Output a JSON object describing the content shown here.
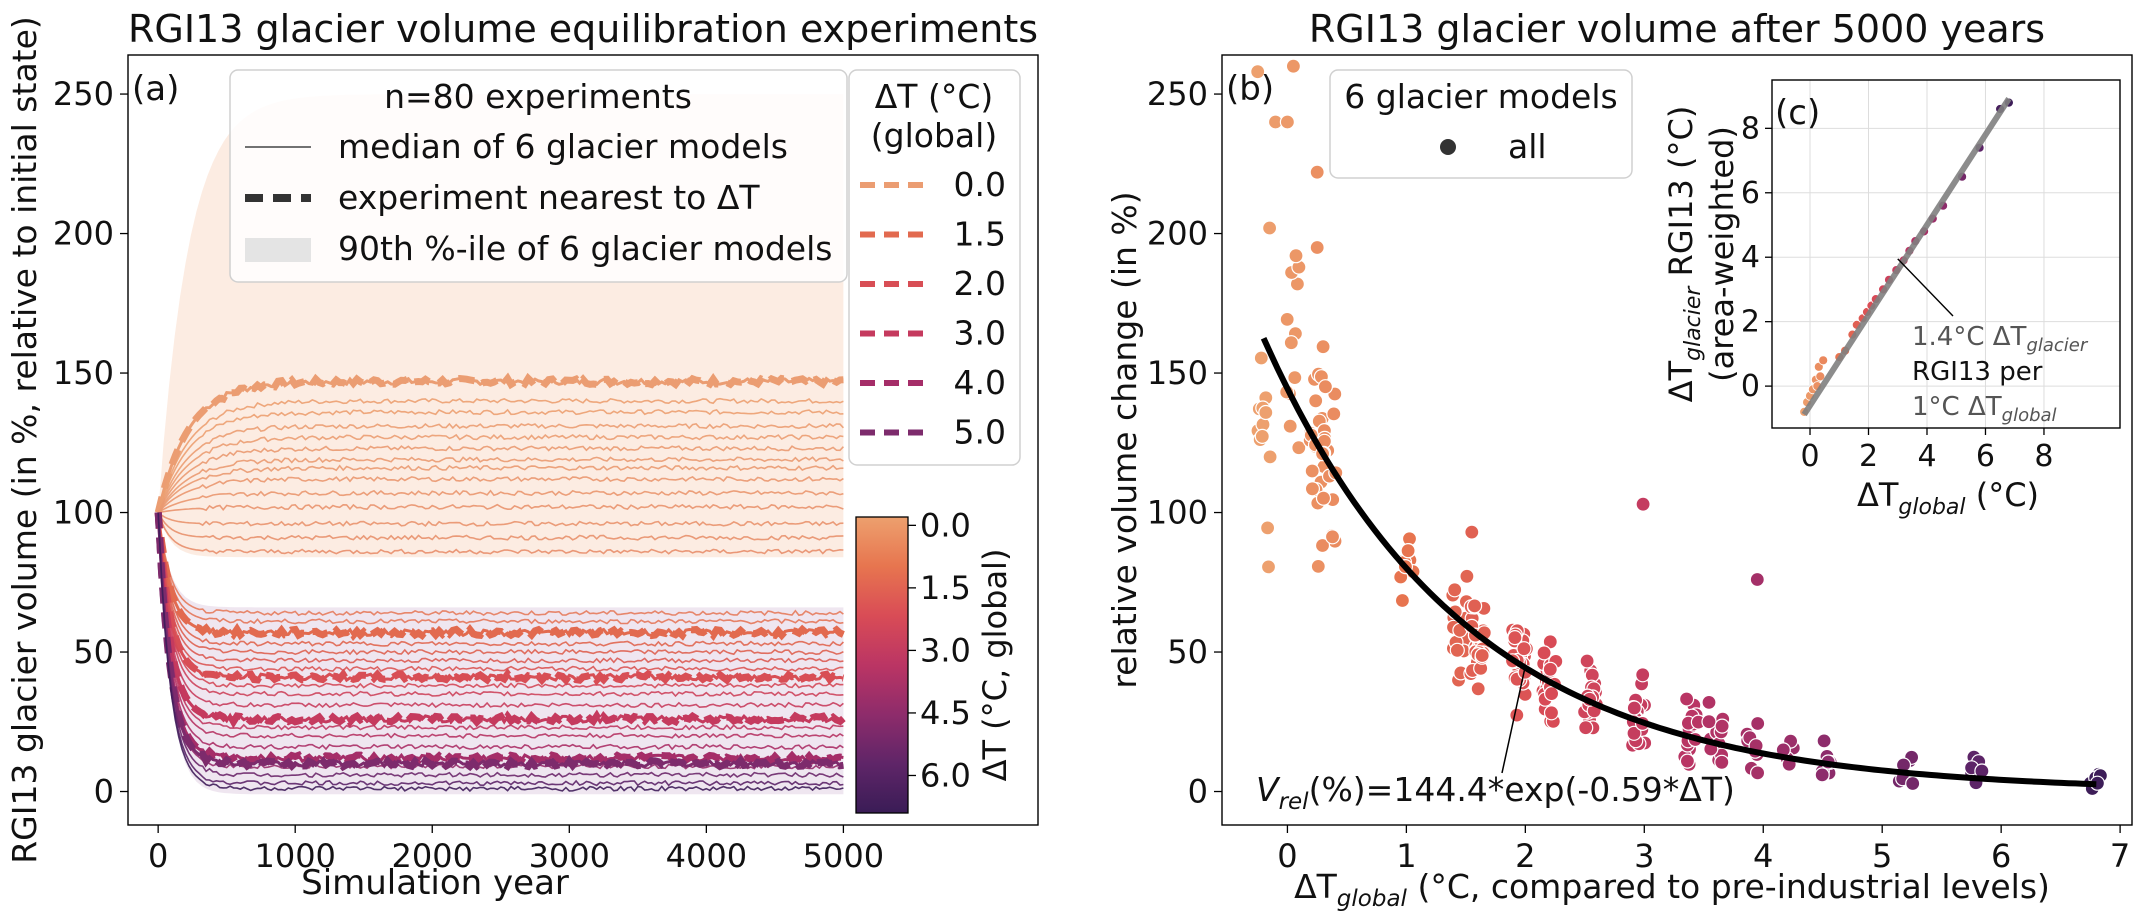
{
  "figure": {
    "panel_labels": [
      "(a)",
      "(b)",
      "(c)"
    ]
  },
  "chart_data": [
    {
      "type": "line",
      "title": "RGI13 glacier volume equilibration experiments",
      "xlabel": "Simulation year",
      "ylabel": "RGI13 glacier volume (in %, relative to initial state)",
      "xlim": [
        -220,
        6420
      ],
      "ylim": [
        -12,
        264
      ],
      "xticks": [
        0,
        1000,
        2000,
        3000,
        4000,
        5000
      ],
      "yticks": [
        0,
        50,
        100,
        150,
        200,
        250
      ],
      "legend": {
        "title": "n=80 experiments",
        "entries": [
          "median of 6 glacier models",
          "experiment nearest to ΔT",
          "90th %-ile of 6 glacier models"
        ],
        "placement": "top-center"
      },
      "temp_legend": {
        "title_line1": "ΔT (°C)",
        "title_line2": "(global)",
        "entries": [
          {
            "label": "0.0",
            "color": "#eb9d72"
          },
          {
            "label": "1.5",
            "color": "#e26a4f"
          },
          {
            "label": "2.0",
            "color": "#d84e55"
          },
          {
            "label": "3.0",
            "color": "#c53a5e"
          },
          {
            "label": "4.0",
            "color": "#a52d68"
          },
          {
            "label": "5.0",
            "color": "#7d2b6c"
          }
        ],
        "placement": "top-right"
      },
      "colorbar": {
        "label": "ΔT (°C, global)",
        "ticks": [
          "0.0",
          "1.5",
          "3.0",
          "4.5",
          "6.0"
        ],
        "tick_values": [
          0,
          1.5,
          3.0,
          4.5,
          6.0
        ],
        "range": [
          -0.2,
          6.9
        ],
        "gradient": [
          "#eda06e",
          "#e7754f",
          "#d94c56",
          "#bb3564",
          "#8e2c6b",
          "#5f2568",
          "#3a1c56"
        ]
      },
      "bands": {
        "upper_plateau": 250,
        "lower_plateau": -1,
        "upper_color": "#fbe6d8",
        "lower_color": "#e2d2e3"
      },
      "series": [
        {
          "dT": 0.0,
          "plateau": 147,
          "highlight": true,
          "color": "#eb9d72"
        },
        {
          "dT": 0.1,
          "plateau": 140,
          "color": "#eca071"
        },
        {
          "dT": 0.1,
          "plateau": 136,
          "color": "#eca071"
        },
        {
          "dT": 0.2,
          "plateau": 131,
          "color": "#eb9d72"
        },
        {
          "dT": 0.2,
          "plateau": 127,
          "color": "#eb9d72"
        },
        {
          "dT": 0.3,
          "plateau": 123,
          "color": "#ea9a71"
        },
        {
          "dT": 0.3,
          "plateau": 119,
          "color": "#ea9a71"
        },
        {
          "dT": 0.3,
          "plateau": 116,
          "color": "#ea9a71"
        },
        {
          "dT": 0.4,
          "plateau": 112,
          "color": "#ea976f"
        },
        {
          "dT": 0.4,
          "plateau": 107,
          "color": "#ea976f"
        },
        {
          "dT": 0.5,
          "plateau": 102,
          "color": "#e9946e"
        },
        {
          "dT": 0.5,
          "plateau": 96,
          "color": "#e9946e"
        },
        {
          "dT": 0.6,
          "plateau": 91,
          "color": "#e8916d"
        },
        {
          "dT": 0.7,
          "plateau": 86,
          "color": "#e88e6c"
        },
        {
          "dT": 1.1,
          "plateau": 64,
          "color": "#e57b5c"
        },
        {
          "dT": 1.2,
          "plateau": 61,
          "color": "#e47659"
        },
        {
          "dT": 1.5,
          "plateau": 57,
          "highlight": true,
          "color": "#e26a4f"
        },
        {
          "dT": 1.6,
          "plateau": 53,
          "color": "#e0654f"
        },
        {
          "dT": 1.7,
          "plateau": 50,
          "color": "#de6050"
        },
        {
          "dT": 1.8,
          "plateau": 47,
          "color": "#dc5a52"
        },
        {
          "dT": 1.9,
          "plateau": 44,
          "color": "#da5453"
        },
        {
          "dT": 2.0,
          "plateau": 41,
          "highlight": true,
          "color": "#d84e55"
        },
        {
          "dT": 2.2,
          "plateau": 38,
          "color": "#d44858"
        },
        {
          "dT": 2.5,
          "plateau": 35,
          "color": "#cd425b"
        },
        {
          "dT": 2.8,
          "plateau": 31,
          "color": "#c83d5d"
        },
        {
          "dT": 3.0,
          "plateau": 26,
          "highlight": true,
          "color": "#c53a5e"
        },
        {
          "dT": 3.2,
          "plateau": 23,
          "color": "#bf3761"
        },
        {
          "dT": 3.5,
          "plateau": 20,
          "color": "#b63363"
        },
        {
          "dT": 3.8,
          "plateau": 16,
          "color": "#ab2f66"
        },
        {
          "dT": 4.0,
          "plateau": 12,
          "highlight": true,
          "color": "#a52d68"
        },
        {
          "dT": 4.4,
          "plateau": 9,
          "color": "#962c6a"
        },
        {
          "dT": 5.0,
          "plateau": 10,
          "highlight": true,
          "color": "#7d2b6c"
        },
        {
          "dT": 5.4,
          "plateau": 6,
          "color": "#6c276a"
        },
        {
          "dT": 5.8,
          "plateau": 3,
          "color": "#5c2468"
        },
        {
          "dT": 6.8,
          "plateau": 1,
          "color": "#3f1d5a"
        }
      ]
    },
    {
      "type": "scatter",
      "title": "RGI13 glacier volume after 5000 years",
      "xlabel_main": "ΔT",
      "xlabel_sub": "global",
      "xlabel_rest": " (°C, compared to pre-industrial levels)",
      "ylabel": "relative volume change (in %)",
      "xlim": [
        -0.55,
        7.1
      ],
      "ylim": [
        -12,
        264
      ],
      "xticks": [
        0,
        1,
        2,
        3,
        4,
        5,
        6,
        7
      ],
      "yticks": [
        0,
        50,
        100,
        150,
        200,
        250
      ],
      "legend": {
        "title": "6 glacier models",
        "entries": [
          "all"
        ],
        "placement": "top-center"
      },
      "fit": {
        "a": 144.4,
        "b": -0.59,
        "x_range": [
          -0.2,
          6.8
        ],
        "color": "#000000"
      },
      "annotation": {
        "prefix": "V",
        "sub": "rel",
        "text": "(%)=144.4*exp(-0.59*ΔT)",
        "arrow_to": [
          2.0,
          45
        ]
      },
      "groups": [
        {
          "dT": -0.2,
          "center": 130,
          "spread": 55,
          "n": 12
        },
        {
          "dT": 0.05,
          "center": 150,
          "spread": 65,
          "n": 12
        },
        {
          "dT": 0.25,
          "center": 125,
          "spread": 50,
          "n": 24
        },
        {
          "dT": 0.35,
          "center": 115,
          "spread": 40,
          "n": 18
        },
        {
          "dT": 1.0,
          "center": 82,
          "spread": 22,
          "n": 10
        },
        {
          "dT": 1.45,
          "center": 58,
          "spread": 20,
          "n": 18
        },
        {
          "dT": 1.6,
          "center": 55,
          "spread": 20,
          "n": 30
        },
        {
          "dT": 1.95,
          "center": 44,
          "spread": 18,
          "n": 28
        },
        {
          "dT": 2.2,
          "center": 38,
          "spread": 20,
          "n": 22
        },
        {
          "dT": 2.55,
          "center": 32,
          "spread": 18,
          "n": 20
        },
        {
          "dT": 2.95,
          "center": 27,
          "spread": 18,
          "n": 20
        },
        {
          "dT": 3.4,
          "center": 22,
          "spread": 16,
          "n": 18
        },
        {
          "dT": 3.6,
          "center": 20,
          "spread": 14,
          "n": 12
        },
        {
          "dT": 3.9,
          "center": 16,
          "spread": 12,
          "n": 12
        },
        {
          "dT": 4.2,
          "center": 13,
          "spread": 10,
          "n": 8
        },
        {
          "dT": 4.55,
          "center": 11,
          "spread": 10,
          "n": 8
        },
        {
          "dT": 5.2,
          "center": 8,
          "spread": 8,
          "n": 6
        },
        {
          "dT": 5.8,
          "center": 7,
          "spread": 6,
          "n": 6
        },
        {
          "dT": 6.8,
          "center": 5,
          "spread": 5,
          "n": 6
        }
      ],
      "outliers": [
        {
          "x": -0.25,
          "y": 258
        },
        {
          "x": 0.05,
          "y": 260
        },
        {
          "x": -0.1,
          "y": 240
        },
        {
          "x": 0.0,
          "y": 240
        },
        {
          "x": 0.25,
          "y": 195
        },
        {
          "x": 0.25,
          "y": 222
        },
        {
          "x": -0.15,
          "y": 202
        },
        {
          "x": 2.99,
          "y": 103
        },
        {
          "x": 3.95,
          "y": 76
        },
        {
          "x": 1.55,
          "y": 93
        }
      ]
    },
    {
      "type": "scatter",
      "inset": true,
      "ylabel_line1_main": "ΔT",
      "ylabel_line1_sub": "glacier",
      "ylabel_line1_rest": " RGI13 (°C)",
      "ylabel_line2": "(area-weighted)",
      "xlabel_main": "ΔT",
      "xlabel_sub": "global",
      "xlabel_rest": " (°C)",
      "xlim": [
        -1.3,
        10.6
      ],
      "ylim": [
        -1.3,
        9.5
      ],
      "xticks": [
        0,
        2,
        4,
        6,
        8
      ],
      "yticks": [
        0,
        2,
        4,
        6,
        8
      ],
      "fit": {
        "slope": 1.4,
        "intercept": -0.6,
        "x_range": [
          -0.2,
          6.8
        ],
        "color": "#808080"
      },
      "annotation": {
        "line1": "1.4°C ΔT",
        "line1_sub": "glacier",
        "line2": "RGI13 per",
        "line3": "1°C ΔT",
        "line3_sub": "global",
        "arrow_to": [
          3.0,
          3.95
        ]
      },
      "points": [
        {
          "x": -0.2,
          "y": -0.8
        },
        {
          "x": -0.1,
          "y": -0.5
        },
        {
          "x": 0.0,
          "y": -0.3
        },
        {
          "x": 0.1,
          "y": -0.1
        },
        {
          "x": 0.2,
          "y": 0.2
        },
        {
          "x": 0.25,
          "y": 0.0
        },
        {
          "x": 0.3,
          "y": 0.6
        },
        {
          "x": 0.35,
          "y": 0.3
        },
        {
          "x": 0.45,
          "y": 0.8
        },
        {
          "x": 1.0,
          "y": 0.9
        },
        {
          "x": 1.2,
          "y": 1.1
        },
        {
          "x": 1.45,
          "y": 1.6
        },
        {
          "x": 1.6,
          "y": 1.9
        },
        {
          "x": 1.8,
          "y": 2.1
        },
        {
          "x": 1.95,
          "y": 2.3
        },
        {
          "x": 2.1,
          "y": 2.5
        },
        {
          "x": 2.25,
          "y": 2.7
        },
        {
          "x": 2.5,
          "y": 3.0
        },
        {
          "x": 2.7,
          "y": 3.3
        },
        {
          "x": 2.95,
          "y": 3.6
        },
        {
          "x": 3.2,
          "y": 3.9
        },
        {
          "x": 3.4,
          "y": 4.2
        },
        {
          "x": 3.6,
          "y": 4.5
        },
        {
          "x": 3.9,
          "y": 4.8
        },
        {
          "x": 4.2,
          "y": 5.2
        },
        {
          "x": 4.55,
          "y": 5.6
        },
        {
          "x": 5.2,
          "y": 6.5
        },
        {
          "x": 5.8,
          "y": 7.4
        },
        {
          "x": 6.5,
          "y": 8.6
        },
        {
          "x": 6.8,
          "y": 8.8
        }
      ]
    }
  ]
}
